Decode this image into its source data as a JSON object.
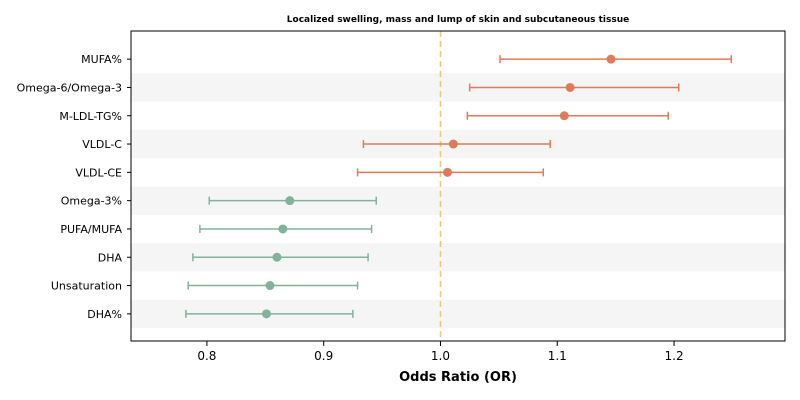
{
  "chart_data": {
    "type": "scatter",
    "subtype": "forest-plot",
    "title": "Localized swelling, mass and lump of skin and subcutaneous tissue",
    "xlabel": "Odds Ratio (OR)",
    "ylabel": "",
    "xlim": [
      0.735,
      1.295
    ],
    "xticks": [
      "0.8",
      "0.9",
      "1.0",
      "1.1",
      "1.2"
    ],
    "reference_line": 1.0,
    "colors": {
      "risk": "#e07b5a",
      "protective": "#80b39a",
      "reference": "#f2c57c",
      "band": "#f5f5f5"
    },
    "rows": [
      {
        "label": "MUFA%",
        "or": 1.146,
        "lower": 1.051,
        "upper": 1.249,
        "group": "risk"
      },
      {
        "label": "Omega-6/Omega-3",
        "or": 1.111,
        "lower": 1.025,
        "upper": 1.204,
        "group": "risk"
      },
      {
        "label": "M-LDL-TG%",
        "or": 1.106,
        "lower": 1.023,
        "upper": 1.195,
        "group": "risk"
      },
      {
        "label": "VLDL-C",
        "or": 1.011,
        "lower": 0.934,
        "upper": 1.094,
        "group": "risk"
      },
      {
        "label": "VLDL-CE",
        "or": 1.006,
        "lower": 0.929,
        "upper": 1.088,
        "group": "risk"
      },
      {
        "label": "Omega-3%",
        "or": 0.871,
        "lower": 0.802,
        "upper": 0.945,
        "group": "protective"
      },
      {
        "label": "PUFA/MUFA",
        "or": 0.865,
        "lower": 0.794,
        "upper": 0.941,
        "group": "protective"
      },
      {
        "label": "DHA",
        "or": 0.86,
        "lower": 0.788,
        "upper": 0.938,
        "group": "protective"
      },
      {
        "label": "Unsaturation",
        "or": 0.854,
        "lower": 0.784,
        "upper": 0.929,
        "group": "protective"
      },
      {
        "label": "DHA%",
        "or": 0.851,
        "lower": 0.782,
        "upper": 0.925,
        "group": "protective"
      }
    ]
  }
}
